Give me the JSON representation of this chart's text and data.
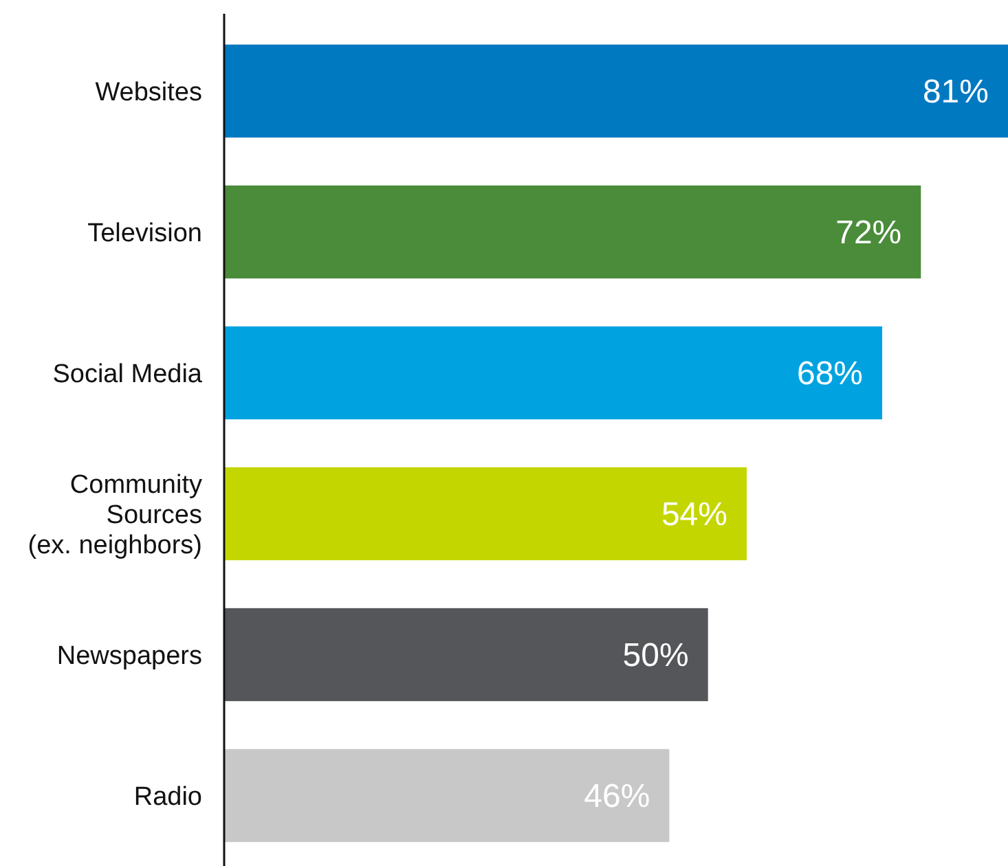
{
  "chart_data": {
    "type": "bar",
    "orientation": "horizontal",
    "categories": [
      "Websites",
      "Television",
      "Social Media",
      "Community Sources (ex. neighbors)",
      "Newspapers",
      "Radio"
    ],
    "values": [
      81,
      72,
      68,
      54,
      50,
      46
    ],
    "colors": [
      "#0079c1",
      "#4a8c3a",
      "#00a3e0",
      "#c4d600",
      "#55565a",
      "#c8c8c8"
    ],
    "value_labels": [
      "81%",
      "72%",
      "68%",
      "54%",
      "50%",
      "46%"
    ]
  }
}
